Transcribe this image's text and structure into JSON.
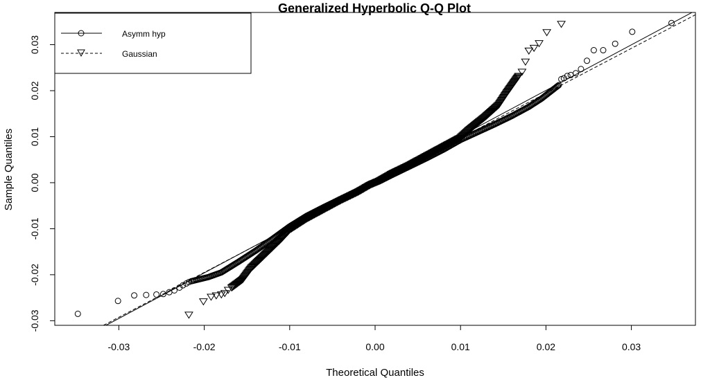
{
  "chart_data": {
    "type": "scatter",
    "title": "Generalized Hyperbolic Q-Q Plot",
    "xlabel": "Theoretical Quantiles",
    "ylabel": "Sample Quantiles",
    "xlim": [
      -0.0375,
      0.0375
    ],
    "ylim": [
      -0.031,
      0.037
    ],
    "x_ticks": [
      -0.03,
      -0.02,
      -0.01,
      0.0,
      0.01,
      0.02,
      0.03
    ],
    "x_tick_labels": [
      "-0.03",
      "-0.02",
      "-0.01",
      "0.00",
      "0.01",
      "0.02",
      "0.03"
    ],
    "y_ticks": [
      -0.03,
      -0.02,
      -0.01,
      0.0,
      0.01,
      0.02,
      0.03
    ],
    "y_tick_labels": [
      "-0.03",
      "-0.02",
      "-0.01",
      "0.00",
      "0.01",
      "0.02",
      "0.03"
    ],
    "grid": false,
    "legend": {
      "position": "top-left",
      "entries": [
        {
          "label": "Asymm hyp",
          "marker": "circle",
          "line": "solid"
        },
        {
          "label": "Gaussian",
          "marker": "triangle-down",
          "line": "dashed"
        }
      ]
    },
    "reference_lines": [
      {
        "series": "Asymm hyp",
        "style": "solid",
        "points": [
          [
            -0.0315,
            -0.031
          ],
          [
            0.0375,
            0.0374
          ]
        ]
      },
      {
        "series": "Gaussian",
        "style": "dashed",
        "points": [
          [
            -0.0318,
            -0.031
          ],
          [
            0.0375,
            0.0365
          ]
        ]
      }
    ],
    "series": [
      {
        "name": "Asymm hyp",
        "marker": "circle",
        "outliers": [
          [
            -0.0348,
            -0.0285
          ],
          [
            -0.0301,
            -0.0257
          ],
          [
            -0.0282,
            -0.0245
          ],
          [
            -0.0268,
            -0.0244
          ],
          [
            -0.0256,
            -0.0243
          ],
          [
            -0.0248,
            -0.0242
          ],
          [
            -0.0241,
            -0.0238
          ],
          [
            -0.0235,
            -0.0234
          ],
          [
            -0.0229,
            -0.0228
          ],
          [
            -0.0225,
            -0.0223
          ],
          [
            -0.0221,
            -0.0219
          ],
          [
            -0.0218,
            -0.0216
          ],
          [
            0.0347,
            0.0347
          ],
          [
            0.0301,
            0.0328
          ],
          [
            0.0281,
            0.0302
          ],
          [
            0.0267,
            0.0288
          ],
          [
            0.0256,
            0.0288
          ],
          [
            0.0248,
            0.0265
          ],
          [
            0.0241,
            0.0247
          ],
          [
            0.0235,
            0.0238
          ],
          [
            0.0229,
            0.0234
          ],
          [
            0.0225,
            0.0232
          ],
          [
            0.0221,
            0.0227
          ],
          [
            0.0218,
            0.0225
          ]
        ],
        "curve": [
          [
            -0.0215,
            -0.0214
          ],
          [
            -0.0195,
            -0.0205
          ],
          [
            -0.018,
            -0.0195
          ],
          [
            -0.016,
            -0.0172
          ],
          [
            -0.014,
            -0.0148
          ],
          [
            -0.012,
            -0.0122
          ],
          [
            -0.01,
            -0.0095
          ],
          [
            -0.008,
            -0.0072
          ],
          [
            -0.006,
            -0.0053
          ],
          [
            -0.004,
            -0.0035
          ],
          [
            -0.002,
            -0.0017
          ],
          [
            -0.0005,
            -0.0003
          ],
          [
            0.0,
            0.0
          ],
          [
            0.0005,
            0.0003
          ],
          [
            0.002,
            0.0017
          ],
          [
            0.004,
            0.0035
          ],
          [
            0.006,
            0.0053
          ],
          [
            0.008,
            0.0072
          ],
          [
            0.01,
            0.0093
          ],
          [
            0.012,
            0.011
          ],
          [
            0.014,
            0.0127
          ],
          [
            0.016,
            0.0145
          ],
          [
            0.018,
            0.0165
          ],
          [
            0.0195,
            0.0183
          ],
          [
            0.0215,
            0.0212
          ]
        ]
      },
      {
        "name": "Gaussian",
        "marker": "triangle-down",
        "outliers": [
          [
            -0.0218,
            -0.0287
          ],
          [
            -0.0201,
            -0.0258
          ],
          [
            -0.0192,
            -0.0248
          ],
          [
            -0.0186,
            -0.0245
          ],
          [
            -0.018,
            -0.0243
          ],
          [
            -0.0176,
            -0.024
          ],
          [
            -0.0172,
            -0.0233
          ],
          [
            0.0218,
            0.0345
          ],
          [
            0.0201,
            0.0327
          ],
          [
            0.0192,
            0.0303
          ],
          [
            0.0186,
            0.0293
          ],
          [
            0.018,
            0.0287
          ],
          [
            0.0176,
            0.0263
          ],
          [
            0.0172,
            0.0241
          ]
        ],
        "curve": [
          [
            -0.0168,
            -0.0228
          ],
          [
            -0.0155,
            -0.021
          ],
          [
            -0.0145,
            -0.0185
          ],
          [
            -0.013,
            -0.0158
          ],
          [
            -0.012,
            -0.014
          ],
          [
            -0.011,
            -0.0122
          ],
          [
            -0.01,
            -0.0102
          ],
          [
            -0.008,
            -0.0078
          ],
          [
            -0.006,
            -0.0058
          ],
          [
            -0.004,
            -0.0038
          ],
          [
            -0.002,
            -0.002
          ],
          [
            -0.0005,
            -0.0004
          ],
          [
            0.0,
            0.0
          ],
          [
            0.0005,
            0.0004
          ],
          [
            0.002,
            0.002
          ],
          [
            0.004,
            0.0038
          ],
          [
            0.006,
            0.0058
          ],
          [
            0.008,
            0.0078
          ],
          [
            0.01,
            0.0098
          ],
          [
            0.011,
            0.0115
          ],
          [
            0.012,
            0.013
          ],
          [
            0.013,
            0.0145
          ],
          [
            0.0145,
            0.017
          ],
          [
            0.0155,
            0.0198
          ],
          [
            0.0168,
            0.0232
          ]
        ]
      }
    ]
  }
}
